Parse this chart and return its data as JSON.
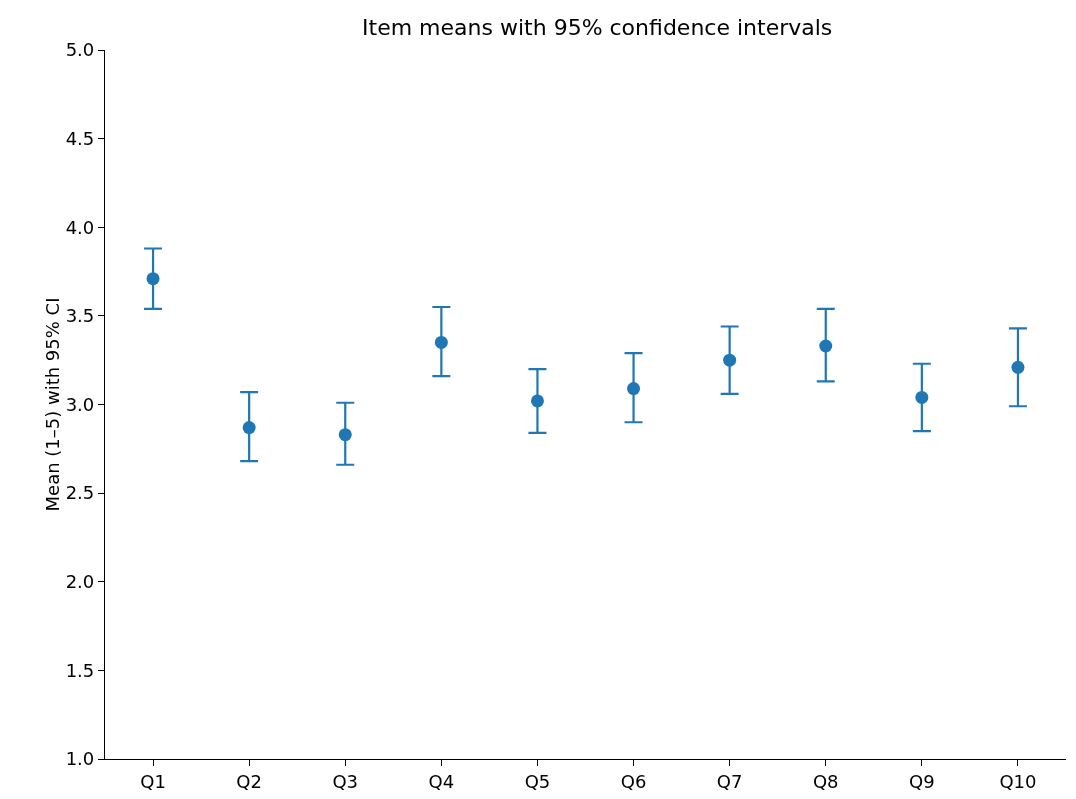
{
  "chart_data": {
    "type": "scatter",
    "title": "Item means with 95% confidence intervals",
    "ylabel": "Mean (1–5) with 95% CI",
    "categories": [
      "Q1",
      "Q2",
      "Q3",
      "Q4",
      "Q5",
      "Q6",
      "Q7",
      "Q8",
      "Q9",
      "Q10"
    ],
    "series": [
      {
        "color": "#1f77b4",
        "values": [
          3.71,
          2.87,
          2.83,
          3.35,
          3.02,
          3.09,
          3.25,
          3.33,
          3.04,
          3.21
        ],
        "errors": [
          [
            3.54,
            3.88
          ],
          [
            2.68,
            3.07
          ],
          [
            2.66,
            3.01
          ],
          [
            3.16,
            3.55
          ],
          [
            2.84,
            3.2
          ],
          [
            2.9,
            3.29
          ],
          [
            3.06,
            3.44
          ],
          [
            3.13,
            3.54
          ],
          [
            2.85,
            3.23
          ],
          [
            2.99,
            3.43
          ]
        ]
      }
    ],
    "ylim": [
      1,
      5
    ],
    "yticks": [
      {
        "value": 1,
        "label": "1.0"
      },
      {
        "value": 1.5,
        "label": "1.5"
      },
      {
        "value": 2,
        "label": "2.0"
      },
      {
        "value": 2.5,
        "label": "2.5"
      },
      {
        "value": 3,
        "label": "3.0"
      },
      {
        "value": 3.5,
        "label": "3.5"
      },
      {
        "value": 4,
        "label": "4.0"
      },
      {
        "value": 4.5,
        "label": "4.5"
      },
      {
        "value": 5,
        "label": "5.0"
      }
    ],
    "grid": false,
    "marker": "circle"
  }
}
